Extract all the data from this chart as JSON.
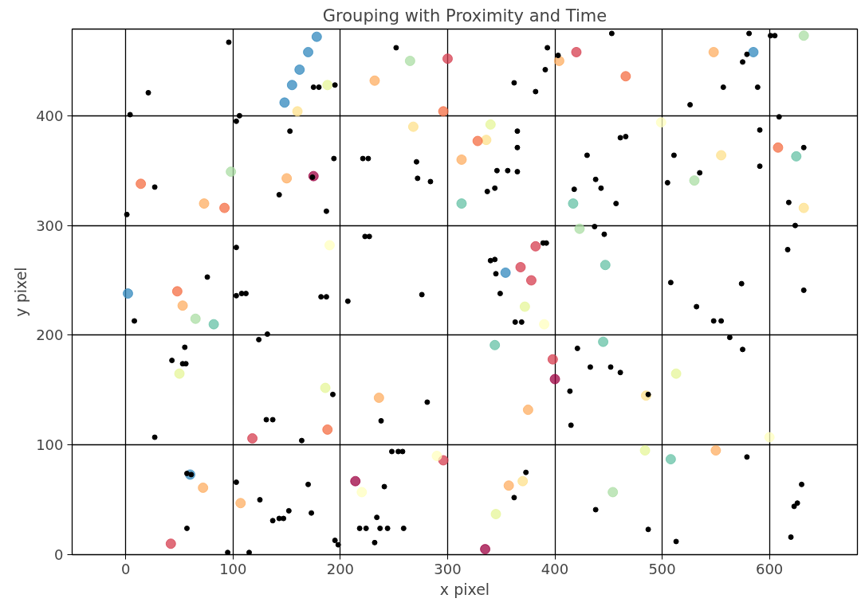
{
  "chart_data": {
    "type": "scatter",
    "title": "Grouping with Proximity and Time",
    "xlabel": "x pixel",
    "ylabel": "y pixel",
    "xlim": [
      -50,
      682
    ],
    "ylim": [
      0,
      479
    ],
    "xticks": [
      0,
      100,
      200,
      300,
      400,
      500,
      600
    ],
    "yticks": [
      0,
      100,
      200,
      300,
      400
    ],
    "grid": true,
    "marker": "circle",
    "series": [
      {
        "color": "#000000",
        "x": [
          96,
          21,
          4,
          1,
          27,
          103,
          106,
          153,
          195,
          143,
          194,
          187,
          174,
          175,
          180,
          252,
          221,
          226,
          271,
          272,
          284,
          362,
          391,
          393,
          382,
          365,
          365,
          346,
          356,
          337,
          344,
          365,
          403,
          453,
          430,
          438,
          443,
          418,
          457,
          461,
          466,
          505,
          511,
          535,
          526,
          557,
          575,
          579,
          589,
          591,
          591,
          581,
          601,
          605,
          609,
          624,
          618,
          632,
          632,
          617,
          8,
          76,
          43,
          53,
          56,
          55,
          27,
          103,
          103,
          108,
          112,
          182,
          187,
          124,
          132,
          223,
          227,
          207,
          276,
          340,
          344,
          345,
          349,
          363,
          369,
          389,
          392,
          437,
          446,
          508,
          532,
          548,
          555,
          563,
          575,
          574,
          57,
          61,
          57,
          103,
          125,
          152,
          137,
          143,
          147,
          131,
          137,
          164,
          170,
          173,
          95,
          115,
          193,
          195,
          198,
          218,
          224,
          237,
          244,
          234,
          232,
          241,
          238,
          248,
          254,
          258,
          259,
          281,
          362,
          373,
          414,
          415,
          421,
          433,
          452,
          461,
          438,
          487,
          487,
          513,
          579,
          630,
          623,
          626,
          620
        ],
        "values": [
          467,
          421,
          401,
          310,
          335,
          395,
          400,
          386,
          428,
          328,
          361,
          313,
          344,
          426,
          426,
          462,
          361,
          361,
          358,
          343,
          340,
          430,
          442,
          462,
          422,
          386,
          349,
          350,
          350,
          331,
          334,
          371,
          455,
          475,
          364,
          342,
          334,
          333,
          320,
          380,
          381,
          339,
          364,
          348,
          410,
          426,
          449,
          456,
          426,
          387,
          354,
          475,
          473,
          473,
          399,
          300,
          321,
          371,
          241,
          278,
          213,
          253,
          177,
          174,
          174,
          189,
          107,
          280,
          236,
          238,
          238,
          235,
          235,
          196,
          201,
          290,
          290,
          231,
          237,
          268,
          269,
          256,
          238,
          212,
          212,
          284,
          284,
          299,
          292,
          248,
          226,
          213,
          213,
          198,
          187,
          247,
          74,
          73,
          24,
          66,
          50,
          40,
          31,
          33,
          33,
          123,
          123,
          104,
          64,
          38,
          2,
          2,
          146,
          13,
          9,
          24,
          24,
          24,
          24,
          34,
          11,
          62,
          122,
          94,
          94,
          94,
          24,
          139,
          52,
          75,
          149,
          118,
          188,
          171,
          171,
          166,
          41,
          146,
          23,
          12,
          89,
          64,
          44,
          47,
          16
        ]
      },
      {
        "x": [
          148,
          155,
          162,
          170,
          178,
          188,
          160,
          232,
          265,
          300,
          296,
          268,
          340,
          336,
          328,
          313,
          313,
          404,
          420,
          466,
          548,
          585,
          632,
          499,
          608,
          625,
          632,
          530,
          555,
          417,
          423,
          447,
          445,
          398,
          400,
          375,
          372,
          390,
          378,
          368,
          382,
          354,
          344,
          236,
          186,
          188,
          118,
          214,
          220,
          296,
          290,
          357,
          370,
          345,
          335,
          454,
          484,
          508,
          550,
          600,
          485,
          513,
          42,
          60,
          72,
          107,
          50,
          48,
          53,
          65,
          82,
          2,
          14,
          73,
          92,
          98,
          175,
          150,
          190
        ],
        "values": [
          412,
          428,
          442,
          458,
          472,
          428,
          404,
          432,
          450,
          452,
          404,
          390,
          392,
          378,
          377,
          360,
          320,
          450,
          458,
          436,
          458,
          458,
          473,
          394,
          371,
          363,
          316,
          341,
          364,
          320,
          297,
          264,
          194,
          178,
          160,
          132,
          226,
          210,
          250,
          262,
          281,
          257,
          191,
          143,
          152,
          114,
          106,
          67,
          57,
          86,
          90,
          63,
          67,
          37,
          5,
          57,
          95,
          87,
          95,
          107,
          145,
          165,
          10,
          73,
          61,
          47,
          165,
          240,
          227,
          215,
          210,
          238,
          338,
          320,
          316,
          349,
          345,
          343,
          282
        ],
        "colors": [
          "#3288bd",
          "#3288bd",
          "#3288bd",
          "#3288bd",
          "#3288bd",
          "#e6f598",
          "#fee08b",
          "#fdae61",
          "#abdda4",
          "#d53e4f",
          "#f46d43",
          "#fee08b",
          "#e6f598",
          "#fee08b",
          "#f46d43",
          "#fdae61",
          "#66c2a5",
          "#fdae61",
          "#d53e4f",
          "#f46d43",
          "#fdae61",
          "#3288bd",
          "#abdda4",
          "#ffffbf",
          "#f46d43",
          "#66c2a5",
          "#fee08b",
          "#abdda4",
          "#fee08b",
          "#66c2a5",
          "#abdda4",
          "#66c2a5",
          "#66c2a5",
          "#d53e4f",
          "#9e0142",
          "#fdae61",
          "#e6f598",
          "#ffffbf",
          "#d53e4f",
          "#d53e4f",
          "#d53e4f",
          "#3288bd",
          "#66c2a5",
          "#fdae61",
          "#e6f598",
          "#f46d43",
          "#d53e4f",
          "#9e0142",
          "#ffffbf",
          "#d53e4f",
          "#ffffbf",
          "#fdae61",
          "#fee08b",
          "#e6f598",
          "#9e0142",
          "#abdda4",
          "#e6f598",
          "#66c2a5",
          "#fdae61",
          "#ffffbf",
          "#fee08b",
          "#e6f598",
          "#d53e4f",
          "#3288bd",
          "#fdae61",
          "#fdae61",
          "#e6f598",
          "#f46d43",
          "#fdae61",
          "#abdda4",
          "#66c2a5",
          "#3288bd",
          "#f46d43",
          "#fdae61",
          "#f46d43",
          "#abdda4",
          "#9e0142",
          "#fdae61",
          "#ffffbf"
        ]
      }
    ]
  }
}
